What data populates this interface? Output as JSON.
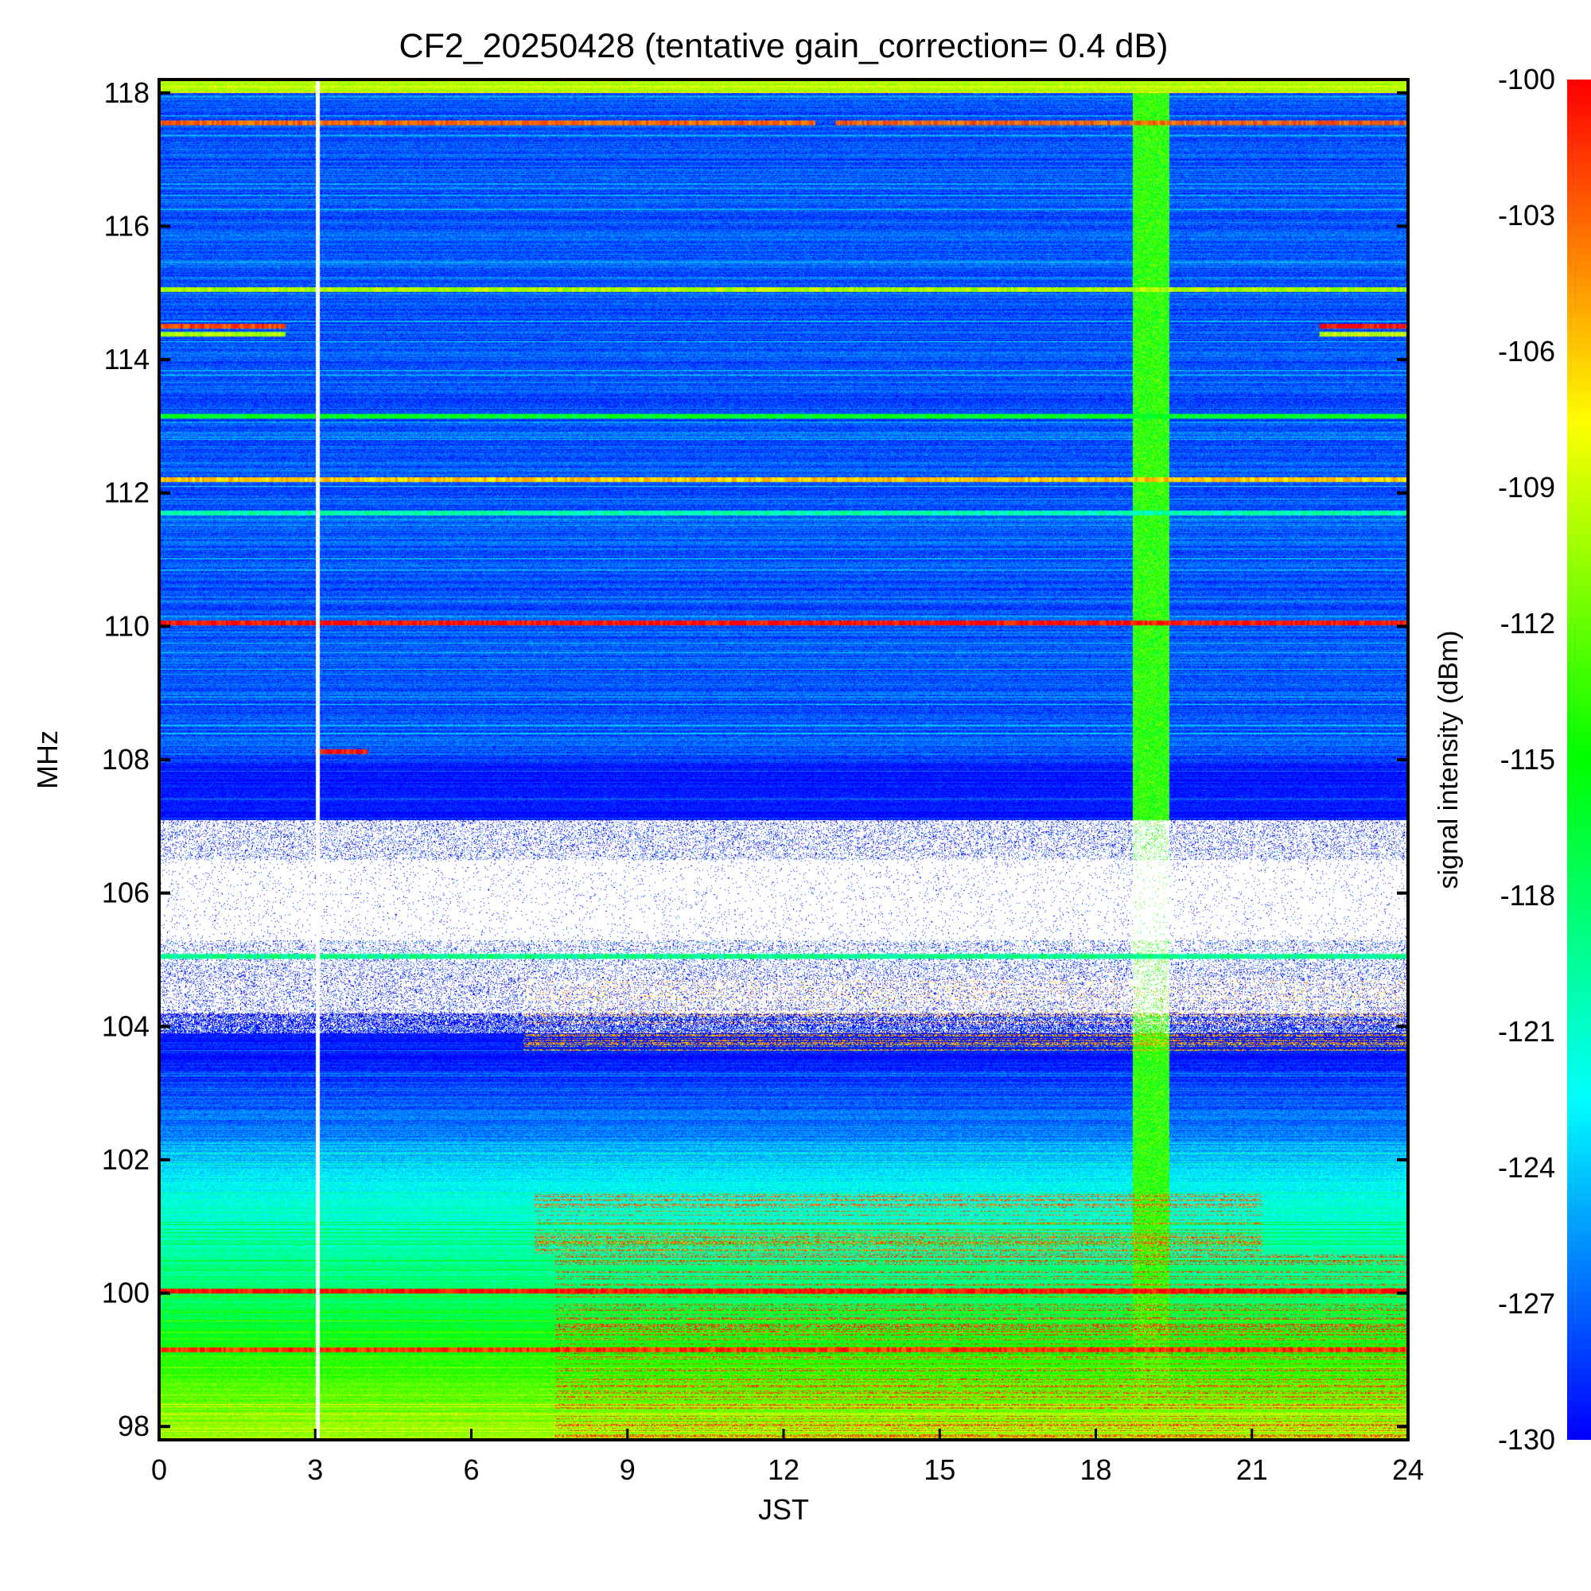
{
  "chart_data": {
    "type": "heatmap",
    "title": "CF2_20250428 (tentative gain_correction=  0.4 dB)",
    "xlabel": "JST",
    "ylabel": "MHz",
    "xlim": [
      0,
      24
    ],
    "ylim": [
      97.8,
      118.2
    ],
    "x_ticks": [
      "0",
      "3",
      "6",
      "9",
      "12",
      "15",
      "18",
      "21",
      "24"
    ],
    "y_ticks": [
      "98",
      "100",
      "102",
      "104",
      "106",
      "108",
      "110",
      "112",
      "114",
      "116",
      "118"
    ],
    "colorbar": {
      "label": "signal intensity (dBm)",
      "range": [
        -130,
        -100
      ],
      "ticks": [
        "-100",
        "-103",
        "-106",
        "-109",
        "-112",
        "-115",
        "-118",
        "-121",
        "-124",
        "-127",
        "-130"
      ],
      "colormap": "rainbow (blue low, red high)"
    },
    "background_by_freq": [
      {
        "freq": 118,
        "dbm": -127.5
      },
      {
        "freq": 108.1,
        "dbm": -127.5
      },
      {
        "freq": 107.9,
        "dbm": -129.5
      },
      {
        "freq": 103.5,
        "dbm": -129.5
      },
      {
        "freq": 102.5,
        "dbm": -126.5
      },
      {
        "freq": 101.5,
        "dbm": -122
      },
      {
        "freq": 100,
        "dbm": -118
      },
      {
        "freq": 99,
        "dbm": -114
      },
      {
        "freq": 97.8,
        "dbm": -110
      }
    ],
    "blank_regions": [
      {
        "freq_min": 104.2,
        "freq_max": 107.1,
        "density": 0.82
      },
      {
        "freq_min": 105.3,
        "freq_max": 106.5,
        "density": 0.97
      },
      {
        "freq_min": 103.9,
        "freq_max": 104.2,
        "density": 0.4
      }
    ],
    "bands": [
      {
        "freq": 117.55,
        "t0": 0,
        "t1": 12.6,
        "dbm": -103
      },
      {
        "freq": 117.55,
        "t0": 13.0,
        "t1": 24,
        "dbm": -103
      },
      {
        "freq": 115.05,
        "t0": 0,
        "t1": 24,
        "dbm": -110
      },
      {
        "freq": 114.5,
        "t0": 0,
        "t1": 2.4,
        "dbm": -102
      },
      {
        "freq": 114.38,
        "t0": 0,
        "t1": 2.4,
        "dbm": -110
      },
      {
        "freq": 114.5,
        "t0": 22.3,
        "t1": 24,
        "dbm": -100.5
      },
      {
        "freq": 114.38,
        "t0": 22.3,
        "t1": 24,
        "dbm": -109
      },
      {
        "freq": 113.15,
        "t0": 0,
        "t1": 24,
        "dbm": -116
      },
      {
        "freq": 112.2,
        "t0": 0,
        "t1": 24,
        "dbm": -106
      },
      {
        "freq": 111.7,
        "t0": 0,
        "t1": 24,
        "dbm": -120
      },
      {
        "freq": 110.05,
        "t0": 0,
        "t1": 24,
        "dbm": -100.5
      },
      {
        "freq": 108.12,
        "t0": 3.0,
        "t1": 4.0,
        "dbm": -100.5
      },
      {
        "freq": 105.05,
        "t0": 0,
        "t1": 24,
        "dbm": -119
      },
      {
        "freq": 100.03,
        "t0": 0,
        "t1": 24,
        "dbm": -100.5
      },
      {
        "freq": 99.15,
        "t0": 0,
        "t1": 24,
        "dbm": -101.5
      }
    ],
    "dense_regions": [
      {
        "freq_min": 97.8,
        "freq_max": 100.6,
        "t0": 7.6,
        "t1": 24,
        "dbm": -102
      },
      {
        "freq_min": 100.6,
        "freq_max": 101.5,
        "t0": 7.2,
        "t1": 21.2,
        "dbm": -103
      },
      {
        "freq_min": 103.6,
        "freq_max": 104.7,
        "t0": 7.0,
        "t1": 24,
        "dbm": -105
      }
    ],
    "vertical_features": [
      {
        "x": 3.05,
        "type": "gap"
      },
      {
        "x": 19.05,
        "type": "enhanced"
      }
    ]
  }
}
